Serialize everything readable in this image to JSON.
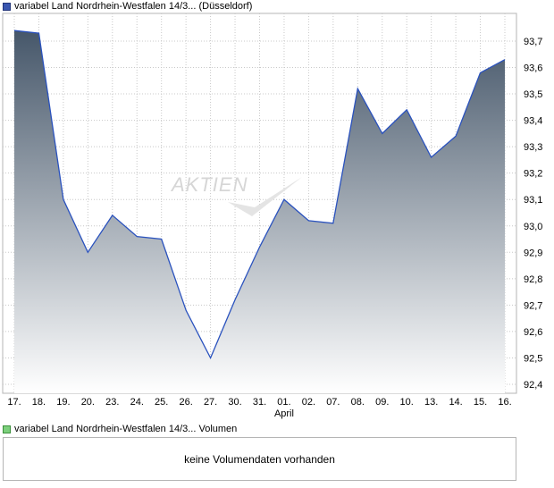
{
  "chart_data": {
    "type": "area",
    "legend": "variabel Land Nordrhein-Westfalen 14/3... (Düsseldorf)",
    "legend_color": "#3a56b0",
    "line_color": "#2a52be",
    "fill_top_color": "#46576a",
    "fill_bottom_color": "#ffffff",
    "x": [
      "17.",
      "18.",
      "19.",
      "20.",
      "23.",
      "24.",
      "25.",
      "26.",
      "27.",
      "30.",
      "31.",
      "01.",
      "02.",
      "07.",
      "08.",
      "09.",
      "10.",
      "13.",
      "14.",
      "15.",
      "16."
    ],
    "month_label": "April",
    "values": [
      93.74,
      93.73,
      93.1,
      92.9,
      93.04,
      92.96,
      92.95,
      92.68,
      92.5,
      92.72,
      92.92,
      93.1,
      93.02,
      93.01,
      93.52,
      93.35,
      93.44,
      93.26,
      93.34,
      93.58,
      93.63
    ],
    "y_ticks": [
      "93,7",
      "93,6",
      "93,5",
      "93,4",
      "93,3",
      "93,2",
      "93,1",
      "93,0",
      "92,9",
      "92,8",
      "92,7",
      "92,6",
      "92,5",
      "92,4"
    ],
    "ylim": [
      92.4,
      93.7
    ],
    "grid": "vertical and horizontal dashed",
    "watermark": "AKTIEN"
  },
  "volume": {
    "legend": "variabel Land Nordrhein-Westfalen 14/3... Volumen",
    "legend_color": "#7ccf7c",
    "message": "keine Volumendaten vorhanden"
  }
}
